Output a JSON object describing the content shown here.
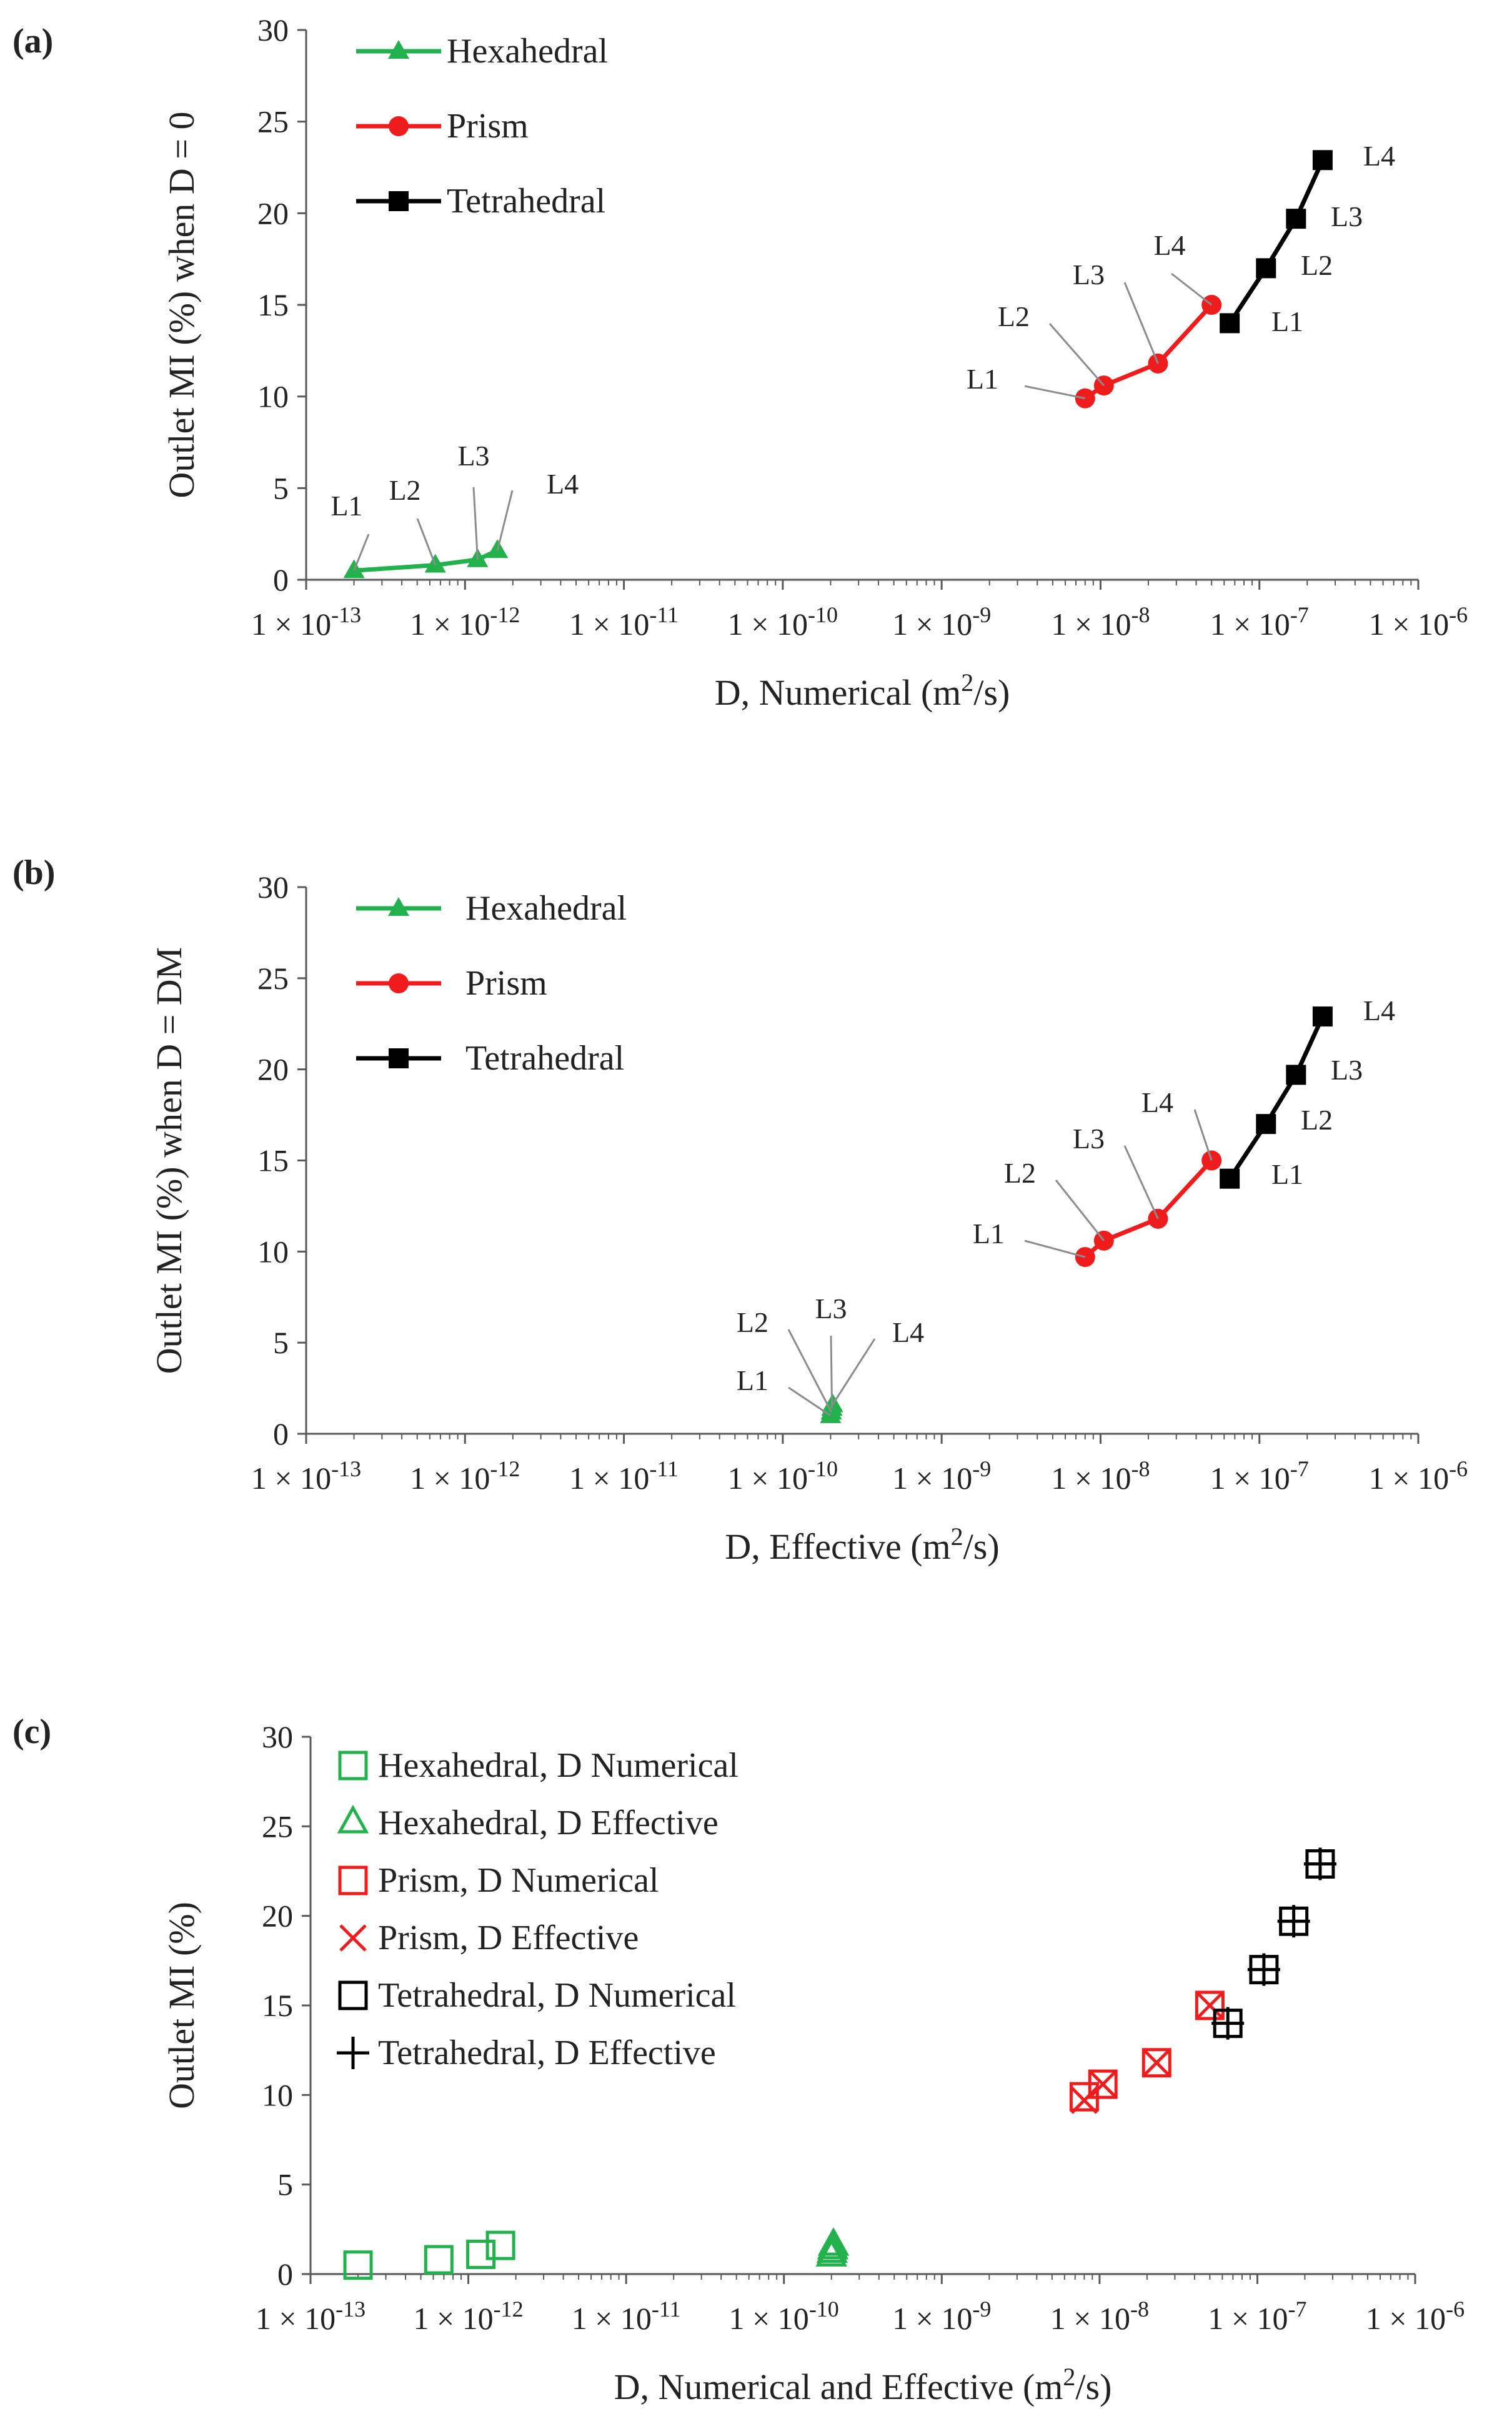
{
  "colors": {
    "hexahedral": "#22b14c",
    "prism": "#ee1c1c",
    "tetrahedral": "#000000",
    "callout": "#8c8c8c",
    "axis": "#595959"
  },
  "chart_data": [
    {
      "panel": "(a)",
      "type": "line",
      "xscale": "log",
      "xlim": [
        1e-13,
        1e-06
      ],
      "ylim": [
        0,
        30
      ],
      "yticks": [
        0,
        5,
        10,
        15,
        20,
        25,
        30
      ],
      "x_ticks": [
        {
          "value": 1e-13,
          "exp": "-13"
        },
        {
          "value": 1e-12,
          "exp": "-12"
        },
        {
          "value": 1e-11,
          "exp": "-11"
        },
        {
          "value": 1e-10,
          "exp": "-10"
        },
        {
          "value": 1e-09,
          "exp": "-9"
        },
        {
          "value": 1e-08,
          "exp": "-8"
        },
        {
          "value": 1e-07,
          "exp": "-7"
        },
        {
          "value": 1e-06,
          "exp": "-6"
        }
      ],
      "xlabel": {
        "pre": "D, Numerical (m",
        "sup": "2",
        "post": "/s)"
      },
      "ylabel": "Outlet MI (%) when D = 0",
      "legend": "top-left",
      "series": [
        {
          "name": "Hexahedral",
          "marker": "triangle",
          "color": "#22b14c",
          "x": [
            2e-13,
            6.5e-13,
            1.2e-12,
            1.6e-12
          ],
          "y": [
            0.5,
            0.8,
            1.1,
            1.6
          ],
          "labels": [
            "L1",
            "L2",
            "L3",
            "L4"
          ]
        },
        {
          "name": "Prism",
          "marker": "circle",
          "color": "#ee1c1c",
          "x": [
            8e-09,
            1.05e-08,
            2.3e-08,
            5e-08
          ],
          "y": [
            9.9,
            10.6,
            11.8,
            15.0
          ],
          "labels": [
            "L1",
            "L2",
            "L3",
            "L4"
          ]
        },
        {
          "name": "Tetrahedral",
          "marker": "square",
          "color": "#000000",
          "x": [
            6.5e-08,
            1.1e-07,
            1.7e-07,
            2.5e-07
          ],
          "y": [
            14.0,
            17.0,
            19.7,
            22.9
          ],
          "labels": [
            "L1",
            "L2",
            "L3",
            "L4"
          ]
        }
      ]
    },
    {
      "panel": "(b)",
      "type": "line",
      "xscale": "log",
      "xlim": [
        1e-13,
        1e-06
      ],
      "ylim": [
        0,
        30
      ],
      "yticks": [
        0,
        5,
        10,
        15,
        20,
        25,
        30
      ],
      "x_ticks": [
        {
          "value": 1e-13,
          "exp": "-13"
        },
        {
          "value": 1e-12,
          "exp": "-12"
        },
        {
          "value": 1e-11,
          "exp": "-11"
        },
        {
          "value": 1e-10,
          "exp": "-10"
        },
        {
          "value": 1e-09,
          "exp": "-9"
        },
        {
          "value": 1e-08,
          "exp": "-8"
        },
        {
          "value": 1e-07,
          "exp": "-7"
        },
        {
          "value": 1e-06,
          "exp": "-6"
        }
      ],
      "xlabel": {
        "pre": "D, Effective (m",
        "sup": "2",
        "post": "/s)"
      },
      "ylabel": "Outlet MI (%) when D = DM",
      "legend": "top-left",
      "series": [
        {
          "name": "Hexahedral",
          "marker": "triangle",
          "color": "#22b14c",
          "x": [
            2e-10,
            2.02e-10,
            2.04e-10,
            2.06e-10
          ],
          "y": [
            1.0,
            1.2,
            1.4,
            1.6
          ],
          "labels": [
            "L1",
            "L2",
            "L3",
            "L4"
          ]
        },
        {
          "name": "Prism",
          "marker": "circle",
          "color": "#ee1c1c",
          "x": [
            8e-09,
            1.05e-08,
            2.3e-08,
            5e-08
          ],
          "y": [
            9.7,
            10.6,
            11.8,
            15.0
          ],
          "labels": [
            "L1",
            "L2",
            "L3",
            "L4"
          ]
        },
        {
          "name": "Tetrahedral",
          "marker": "square",
          "color": "#000000",
          "x": [
            6.5e-08,
            1.1e-07,
            1.7e-07,
            2.5e-07
          ],
          "y": [
            14.0,
            17.0,
            19.7,
            22.9
          ],
          "labels": [
            "L1",
            "L2",
            "L3",
            "L4"
          ]
        }
      ]
    },
    {
      "panel": "(c)",
      "type": "scatter",
      "xscale": "log",
      "xlim": [
        1e-13,
        1e-06
      ],
      "ylim": [
        0,
        30
      ],
      "yticks": [
        0,
        5,
        10,
        15,
        20,
        25,
        30
      ],
      "x_ticks": [
        {
          "value": 1e-13,
          "exp": "-13"
        },
        {
          "value": 1e-12,
          "exp": "-12"
        },
        {
          "value": 1e-11,
          "exp": "-11"
        },
        {
          "value": 1e-10,
          "exp": "-10"
        },
        {
          "value": 1e-09,
          "exp": "-9"
        },
        {
          "value": 1e-08,
          "exp": "-8"
        },
        {
          "value": 1e-07,
          "exp": "-7"
        },
        {
          "value": 1e-06,
          "exp": "-6"
        }
      ],
      "xlabel": {
        "pre": "D, Numerical and Effective (m",
        "sup": "2",
        "post": "/s)"
      },
      "ylabel": "Outlet MI (%)",
      "legend": "top-left",
      "series": [
        {
          "name": "Hexahedral, D Numerical",
          "marker": "open-square",
          "color": "#22b14c",
          "x": [
            2e-13,
            6.5e-13,
            1.2e-12,
            1.6e-12
          ],
          "y": [
            0.5,
            0.8,
            1.1,
            1.6
          ]
        },
        {
          "name": "Hexahedral, D Effective",
          "marker": "open-triangle",
          "color": "#22b14c",
          "x": [
            2e-10,
            2.02e-10,
            2.04e-10,
            2.06e-10
          ],
          "y": [
            1.0,
            1.2,
            1.4,
            1.6
          ]
        },
        {
          "name": "Prism, D Numerical",
          "marker": "open-square",
          "color": "#ee1c1c",
          "x": [
            8e-09,
            1.05e-08,
            2.3e-08,
            5e-08
          ],
          "y": [
            9.9,
            10.6,
            11.8,
            15.0
          ]
        },
        {
          "name": "Prism, D Effective",
          "marker": "x",
          "color": "#ee1c1c",
          "x": [
            8e-09,
            1.05e-08,
            2.3e-08,
            5e-08
          ],
          "y": [
            9.7,
            10.6,
            11.8,
            15.0
          ]
        },
        {
          "name": "Tetrahedral, D Numerical",
          "marker": "open-square",
          "color": "#000000",
          "x": [
            6.5e-08,
            1.1e-07,
            1.7e-07,
            2.5e-07
          ],
          "y": [
            14.0,
            17.0,
            19.7,
            22.9
          ]
        },
        {
          "name": "Tetrahedral, D Effective",
          "marker": "plus",
          "color": "#000000",
          "x": [
            6.5e-08,
            1.1e-07,
            1.7e-07,
            2.5e-07
          ],
          "y": [
            14.0,
            17.0,
            19.7,
            22.9
          ]
        }
      ]
    }
  ]
}
